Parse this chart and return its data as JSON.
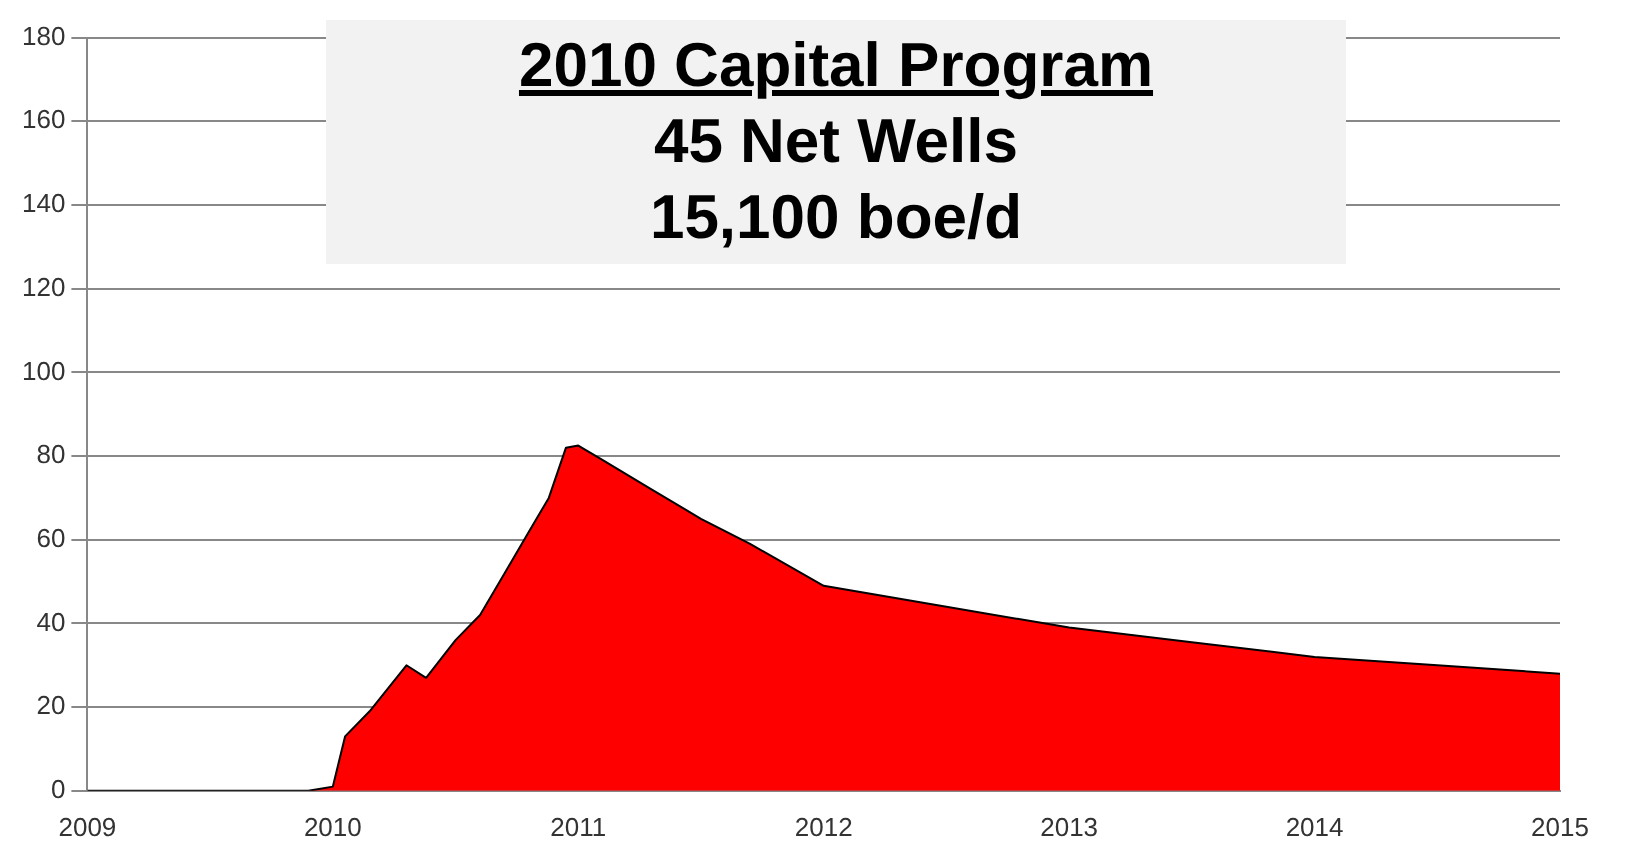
{
  "chart_data": {
    "type": "area",
    "title": "2010 Capital Program",
    "annotations": [
      "45 Net Wells",
      "15,100 boe/d"
    ],
    "x": [
      2009,
      2009.9,
      2010,
      2010.05,
      2010.15,
      2010.3,
      2010.38,
      2010.5,
      2010.6,
      2010.7,
      2010.8,
      2010.88,
      2010.95,
      2011,
      2011.1,
      2011.3,
      2011.5,
      2011.7,
      2012,
      2012.5,
      2013,
      2013.5,
      2014,
      2014.5,
      2015
    ],
    "series": [
      {
        "color": "#ff0000",
        "values": [
          0,
          0,
          1,
          13,
          19,
          30,
          27,
          36,
          42,
          52,
          62,
          70,
          82,
          82.5,
          79,
          72,
          65,
          59,
          49,
          44,
          39,
          35.5,
          32,
          30,
          28
        ]
      }
    ],
    "xlim": [
      2009,
      2015
    ],
    "xticks": [
      2009,
      2010,
      2011,
      2012,
      2013,
      2014,
      2015
    ],
    "ylim": [
      0,
      180
    ],
    "yticks": [
      0,
      20,
      40,
      60,
      80,
      100,
      120,
      140,
      160,
      180
    ],
    "grid": "y",
    "legend": false
  }
}
